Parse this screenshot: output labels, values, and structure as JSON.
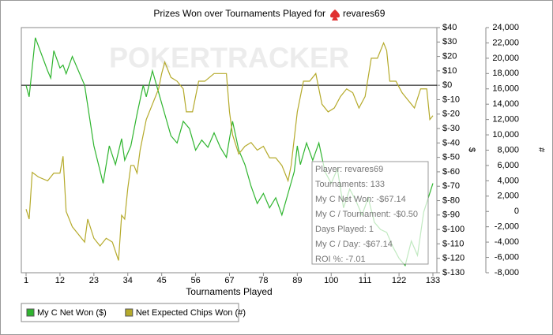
{
  "chart_data": {
    "type": "line",
    "title": "Prizes Won over Tournaments Played for",
    "title_player": "revares69",
    "watermark": "POKERTRACKER",
    "xlabel": "Tournaments Played",
    "ylabel": "$",
    "y2label": "#",
    "xlim": [
      1,
      133
    ],
    "xticks": [
      1,
      12,
      23,
      34,
      45,
      56,
      67,
      78,
      89,
      100,
      111,
      122,
      133
    ],
    "ylim": [
      -130,
      40
    ],
    "yticks": [
      {
        "value": 40,
        "label": "$40"
      },
      {
        "value": 30,
        "label": "$30"
      },
      {
        "value": 20,
        "label": "$20"
      },
      {
        "value": 10,
        "label": "$10"
      },
      {
        "value": 0,
        "label": "$0"
      },
      {
        "value": -10,
        "label": "$-10"
      },
      {
        "value": -20,
        "label": "$-20"
      },
      {
        "value": -30,
        "label": "$-30"
      },
      {
        "value": -40,
        "label": "$-40"
      },
      {
        "value": -50,
        "label": "$-50"
      },
      {
        "value": -60,
        "label": "$-60"
      },
      {
        "value": -70,
        "label": "$-70"
      },
      {
        "value": -80,
        "label": "$-80"
      },
      {
        "value": -90,
        "label": "$-90"
      },
      {
        "value": -100,
        "label": "$-100"
      },
      {
        "value": -110,
        "label": "$-110"
      },
      {
        "value": -120,
        "label": "$-120"
      },
      {
        "value": -130,
        "label": "$-130"
      }
    ],
    "y2lim": [
      -8000,
      24000
    ],
    "y2ticks": [
      {
        "value": 24000,
        "label": "24,000"
      },
      {
        "value": 22000,
        "label": "22,000"
      },
      {
        "value": 20000,
        "label": "20,000"
      },
      {
        "value": 18000,
        "label": "18,000"
      },
      {
        "value": 16000,
        "label": "16,000"
      },
      {
        "value": 14000,
        "label": "14,000"
      },
      {
        "value": 12000,
        "label": "12,000"
      },
      {
        "value": 10000,
        "label": "10,000"
      },
      {
        "value": 8000,
        "label": "8,000"
      },
      {
        "value": 6000,
        "label": "6,000"
      },
      {
        "value": 4000,
        "label": "4,000"
      },
      {
        "value": 2000,
        "label": "2,000"
      },
      0,
      {
        "value": -2000,
        "label": "-2,000"
      },
      {
        "value": -4000,
        "label": "-4,000"
      },
      {
        "value": -6000,
        "label": "-6,000"
      },
      {
        "value": -8000,
        "label": "-8,000"
      }
    ],
    "series": [
      {
        "name": "My C Net Won ($)",
        "color": "#2fb52f",
        "x": [
          1,
          2,
          4,
          8,
          9,
          10,
          12,
          13,
          14,
          16,
          20,
          23,
          26,
          28,
          30,
          32,
          33,
          35,
          37,
          39,
          40,
          42,
          44,
          46,
          48,
          50,
          52,
          54,
          56,
          58,
          60,
          62,
          64,
          66,
          67,
          68,
          70,
          72,
          74,
          76,
          78,
          80,
          82,
          84,
          86,
          88,
          89,
          90,
          92,
          94,
          96,
          98,
          100,
          102,
          104,
          106,
          108,
          110,
          112,
          114,
          116,
          118,
          120,
          122,
          124,
          126,
          128,
          130,
          133
        ],
        "values": [
          0,
          -8,
          33,
          10,
          5,
          24,
          12,
          14,
          8,
          20,
          0,
          -42,
          -68,
          -42,
          -55,
          -37,
          -52,
          -42,
          -20,
          0,
          -8,
          10,
          -5,
          -20,
          -35,
          -40,
          -25,
          -30,
          -45,
          -38,
          -43,
          -33,
          -43,
          -50,
          -37,
          -25,
          -45,
          -55,
          -70,
          -82,
          -75,
          -85,
          -78,
          -90,
          -75,
          -60,
          -42,
          -55,
          -40,
          -52,
          -40,
          -60,
          -68,
          -58,
          -85,
          -72,
          -80,
          -90,
          -78,
          -95,
          -100,
          -102,
          -112,
          -120,
          -125,
          -108,
          -118,
          -88,
          -68
        ]
      },
      {
        "name": "Net Expected Chips Won (#)",
        "color": "#b5aa2b",
        "axis": "y2",
        "x": [
          1,
          2,
          3,
          5,
          8,
          10,
          12,
          13,
          14,
          16,
          18,
          20,
          21,
          23,
          25,
          27,
          29,
          31,
          32,
          33,
          34,
          35,
          36,
          37,
          38,
          40,
          42,
          44,
          45,
          46,
          48,
          50,
          52,
          53,
          55,
          57,
          59,
          62,
          64,
          66,
          67,
          68,
          70,
          72,
          74,
          76,
          78,
          80,
          82,
          84,
          86,
          87,
          89,
          91,
          93,
          95,
          97,
          99,
          101,
          103,
          105,
          107,
          109,
          111,
          113,
          115,
          117,
          118,
          119,
          121,
          123,
          125,
          127,
          129,
          131,
          132,
          133
        ],
        "values": [
          300,
          -1000,
          5100,
          4500,
          4000,
          5000,
          5000,
          7200,
          0,
          -2000,
          -3000,
          -4000,
          -1000,
          -3500,
          -4500,
          -3500,
          -4000,
          -6400,
          -500,
          -1000,
          3000,
          6000,
          6000,
          5000,
          8000,
          12000,
          14000,
          16000,
          18000,
          19500,
          17500,
          17000,
          16000,
          13000,
          13000,
          17000,
          17000,
          18000,
          18000,
          18000,
          13000,
          10000,
          7500,
          8500,
          9000,
          8000,
          8500,
          7000,
          7000,
          6000,
          4000,
          6000,
          13000,
          17000,
          17000,
          18000,
          14000,
          13000,
          13500,
          15000,
          16000,
          15500,
          13500,
          15000,
          20000,
          20000,
          22000,
          21000,
          17000,
          17000,
          15500,
          14500,
          13500,
          16000,
          16000,
          12000,
          12500
        ]
      }
    ],
    "tooltip": [
      "Player: revares69",
      "Tournaments: 133",
      "My C Net Won: -$67.14",
      "My C / Tournament: -$0.50",
      "Days Played: 1",
      "My C / Day: -$67.14",
      "ROI %: -7.01"
    ]
  }
}
